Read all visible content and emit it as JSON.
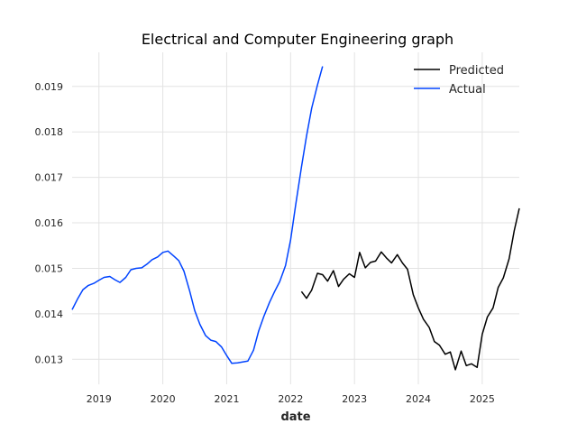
{
  "chart_data": {
    "type": "line",
    "title": "Electrical and Computer Engineering graph",
    "xlabel": "date",
    "ylabel": "",
    "xlim": [
      2018.58,
      2025.58
    ],
    "ylim": [
      0.01245,
      0.01975
    ],
    "x_ticks": [
      2019,
      2020,
      2021,
      2022,
      2023,
      2024,
      2025
    ],
    "x_tick_labels": [
      "2019",
      "2020",
      "2021",
      "2022",
      "2023",
      "2024",
      "2025"
    ],
    "y_ticks": [
      0.013,
      0.014,
      0.015,
      0.016,
      0.017,
      0.018,
      0.019
    ],
    "y_tick_labels": [
      "0.013",
      "0.014",
      "0.015",
      "0.016",
      "0.017",
      "0.018",
      "0.019"
    ],
    "grid": true,
    "legend_position": "top-right",
    "series": [
      {
        "name": "Predicted",
        "color": "#000000",
        "points": [
          [
            2022.17,
            0.01449
          ],
          [
            2022.25,
            0.01434
          ],
          [
            2022.33,
            0.01452
          ],
          [
            2022.42,
            0.01489
          ],
          [
            2022.5,
            0.01486
          ],
          [
            2022.58,
            0.01472
          ],
          [
            2022.67,
            0.01495
          ],
          [
            2022.75,
            0.0146
          ],
          [
            2022.83,
            0.01476
          ],
          [
            2022.92,
            0.01488
          ],
          [
            2023.0,
            0.0148
          ],
          [
            2023.08,
            0.01535
          ],
          [
            2023.17,
            0.01501
          ],
          [
            2023.25,
            0.01513
          ],
          [
            2023.33,
            0.01516
          ],
          [
            2023.42,
            0.01536
          ],
          [
            2023.5,
            0.01523
          ],
          [
            2023.58,
            0.01512
          ],
          [
            2023.67,
            0.0153
          ],
          [
            2023.75,
            0.01512
          ],
          [
            2023.83,
            0.01498
          ],
          [
            2023.92,
            0.01442
          ],
          [
            2024.0,
            0.01413
          ],
          [
            2024.08,
            0.01388
          ],
          [
            2024.17,
            0.0137
          ],
          [
            2024.25,
            0.01339
          ],
          [
            2024.33,
            0.01331
          ],
          [
            2024.42,
            0.01311
          ],
          [
            2024.5,
            0.01316
          ],
          [
            2024.58,
            0.01277
          ],
          [
            2024.67,
            0.01318
          ],
          [
            2024.75,
            0.01286
          ],
          [
            2024.83,
            0.0129
          ],
          [
            2024.92,
            0.01282
          ],
          [
            2025.0,
            0.01355
          ],
          [
            2025.08,
            0.01393
          ],
          [
            2025.17,
            0.01413
          ],
          [
            2025.25,
            0.01458
          ],
          [
            2025.33,
            0.01479
          ],
          [
            2025.42,
            0.01521
          ],
          [
            2025.5,
            0.01582
          ],
          [
            2025.58,
            0.01632
          ]
        ]
      },
      {
        "name": "Actual",
        "color": "#0043ff",
        "points": [
          [
            2018.58,
            0.01409
          ],
          [
            2018.67,
            0.01434
          ],
          [
            2018.75,
            0.01453
          ],
          [
            2018.83,
            0.01462
          ],
          [
            2018.92,
            0.01467
          ],
          [
            2019.0,
            0.01474
          ],
          [
            2019.08,
            0.0148
          ],
          [
            2019.17,
            0.01482
          ],
          [
            2019.25,
            0.01475
          ],
          [
            2019.33,
            0.01469
          ],
          [
            2019.42,
            0.0148
          ],
          [
            2019.5,
            0.01497
          ],
          [
            2019.58,
            0.015
          ],
          [
            2019.67,
            0.01501
          ],
          [
            2019.75,
            0.01509
          ],
          [
            2019.83,
            0.01519
          ],
          [
            2019.92,
            0.01525
          ],
          [
            2020.0,
            0.01535
          ],
          [
            2020.08,
            0.01538
          ],
          [
            2020.17,
            0.01527
          ],
          [
            2020.25,
            0.01517
          ],
          [
            2020.33,
            0.01494
          ],
          [
            2020.42,
            0.0145
          ],
          [
            2020.5,
            0.01407
          ],
          [
            2020.58,
            0.01377
          ],
          [
            2020.67,
            0.01352
          ],
          [
            2020.75,
            0.01342
          ],
          [
            2020.83,
            0.01339
          ],
          [
            2020.92,
            0.01327
          ],
          [
            2021.0,
            0.01308
          ],
          [
            2021.08,
            0.01291
          ],
          [
            2021.17,
            0.01292
          ],
          [
            2021.25,
            0.01294
          ],
          [
            2021.33,
            0.01296
          ],
          [
            2021.42,
            0.0132
          ],
          [
            2021.5,
            0.01362
          ],
          [
            2021.58,
            0.01394
          ],
          [
            2021.67,
            0.01425
          ],
          [
            2021.75,
            0.01449
          ],
          [
            2021.83,
            0.01471
          ],
          [
            2021.92,
            0.01506
          ],
          [
            2022.0,
            0.01562
          ],
          [
            2022.08,
            0.0164
          ],
          [
            2022.17,
            0.01723
          ],
          [
            2022.25,
            0.01791
          ],
          [
            2022.33,
            0.01852
          ],
          [
            2022.42,
            0.01903
          ],
          [
            2022.5,
            0.01944
          ]
        ]
      }
    ]
  }
}
